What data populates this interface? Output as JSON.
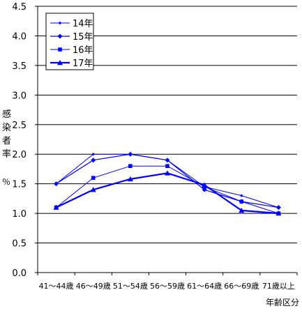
{
  "chart_data": {
    "type": "line",
    "categories": [
      "41～44歳",
      "46～49歳",
      "51～54歳",
      "56～59歳",
      "61～64歳",
      "66～69歳",
      "71歳以上"
    ],
    "y_ticks": [
      "0.0",
      "0.5",
      "1.0",
      "1.5",
      "2.0",
      "2.5",
      "3.0",
      "3.5",
      "4.0",
      "4.5"
    ],
    "ylim": [
      0,
      4.5
    ],
    "ylabel": "感染者率 ％",
    "ylabel_main": "感染者率",
    "ylabel_unit": "％",
    "xlabel": "年齢区分",
    "legend_position": "top-left",
    "grid": "horizontal",
    "series": [
      {
        "name": "14年",
        "values": [
          1.5,
          2.0,
          2.0,
          1.9,
          1.45,
          1.3,
          1.1
        ],
        "marker": "diamond-small",
        "stroke": 1
      },
      {
        "name": "15年",
        "values": [
          1.5,
          1.9,
          2.0,
          1.9,
          1.4,
          1.2,
          1.1
        ],
        "marker": "diamond",
        "stroke": 1.2
      },
      {
        "name": "16年",
        "values": [
          1.1,
          1.6,
          1.8,
          1.8,
          1.45,
          1.2,
          1.0
        ],
        "marker": "square",
        "stroke": 1
      },
      {
        "name": "17年",
        "values": [
          1.1,
          1.4,
          1.58,
          1.68,
          1.48,
          1.05,
          1.0
        ],
        "marker": "triangle",
        "stroke": 2.2
      }
    ],
    "colors": {
      "series": "#0000ff",
      "axis": "#000000",
      "grid": "#000000"
    }
  }
}
